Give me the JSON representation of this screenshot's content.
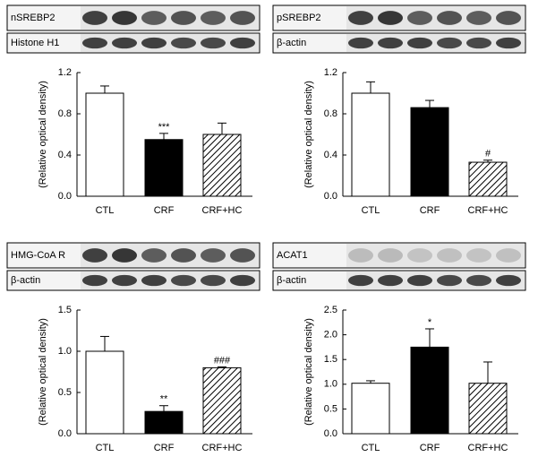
{
  "chart_data": [
    {
      "type": "bar",
      "blots": [
        "nSREBP2",
        "Histone H1"
      ],
      "ylabel": "(Relative optical density)",
      "categories": [
        "CTL",
        "CRF",
        "CRF+HC"
      ],
      "values": [
        1.0,
        0.55,
        0.6
      ],
      "errors": [
        0.07,
        0.06,
        0.11
      ],
      "annotations": [
        null,
        "***",
        null
      ],
      "colors": [
        "#ffffff",
        "#000000",
        "#ffffff"
      ],
      "hatch": [
        false,
        false,
        true
      ],
      "ylim": [
        0,
        1.2
      ],
      "yticks": [
        {
          "value": 0,
          "label": "0.0"
        },
        0.4,
        0.8,
        1.2
      ]
    },
    {
      "type": "bar",
      "blots": [
        "pSREBP2",
        "β-actin"
      ],
      "ylabel": "(Relative optical density)",
      "categories": [
        "CTL",
        "CRF",
        "CRF+HC"
      ],
      "values": [
        1.0,
        0.86,
        0.33
      ],
      "errors": [
        0.11,
        0.07,
        0.02
      ],
      "annotations": [
        null,
        null,
        "#"
      ],
      "colors": [
        "#ffffff",
        "#000000",
        "#ffffff"
      ],
      "hatch": [
        false,
        false,
        true
      ],
      "ylim": [
        0,
        1.2
      ],
      "yticks": [
        {
          "value": 0,
          "label": "0.0"
        },
        0.4,
        0.8,
        1.2
      ]
    },
    {
      "type": "bar",
      "blots": [
        "HMG-CoA R",
        "β-actin"
      ],
      "ylabel": "(Relative optical density)",
      "categories": [
        "CTL",
        "CRF",
        "CRF+HC"
      ],
      "values": [
        1.0,
        0.27,
        0.8
      ],
      "errors": [
        0.18,
        0.07,
        0.01
      ],
      "annotations": [
        null,
        "**",
        "###"
      ],
      "colors": [
        "#ffffff",
        "#000000",
        "#ffffff"
      ],
      "hatch": [
        false,
        false,
        true
      ],
      "ylim": [
        0,
        1.5
      ],
      "yticks": [
        {
          "value": 0,
          "label": "0.0"
        },
        0.5,
        {
          "value": 1,
          "label": "1.0"
        },
        1.5
      ]
    },
    {
      "type": "bar",
      "blots": [
        "ACAT1",
        "β-actin"
      ],
      "ylabel": "(Relative optical density)",
      "categories": [
        "CTL",
        "CRF",
        "CRF+HC"
      ],
      "values": [
        1.02,
        1.75,
        1.02
      ],
      "errors": [
        0.05,
        0.37,
        0.43
      ],
      "annotations": [
        null,
        "*",
        null
      ],
      "colors": [
        "#ffffff",
        "#000000",
        "#ffffff"
      ],
      "hatch": [
        false,
        false,
        true
      ],
      "ylim": [
        0,
        2.5
      ],
      "yticks": [
        {
          "value": 0,
          "label": "0.0"
        },
        0.5,
        {
          "value": 1,
          "label": "1.0"
        },
        1.5,
        {
          "value": 2,
          "label": "2.0"
        },
        2.5
      ]
    }
  ]
}
